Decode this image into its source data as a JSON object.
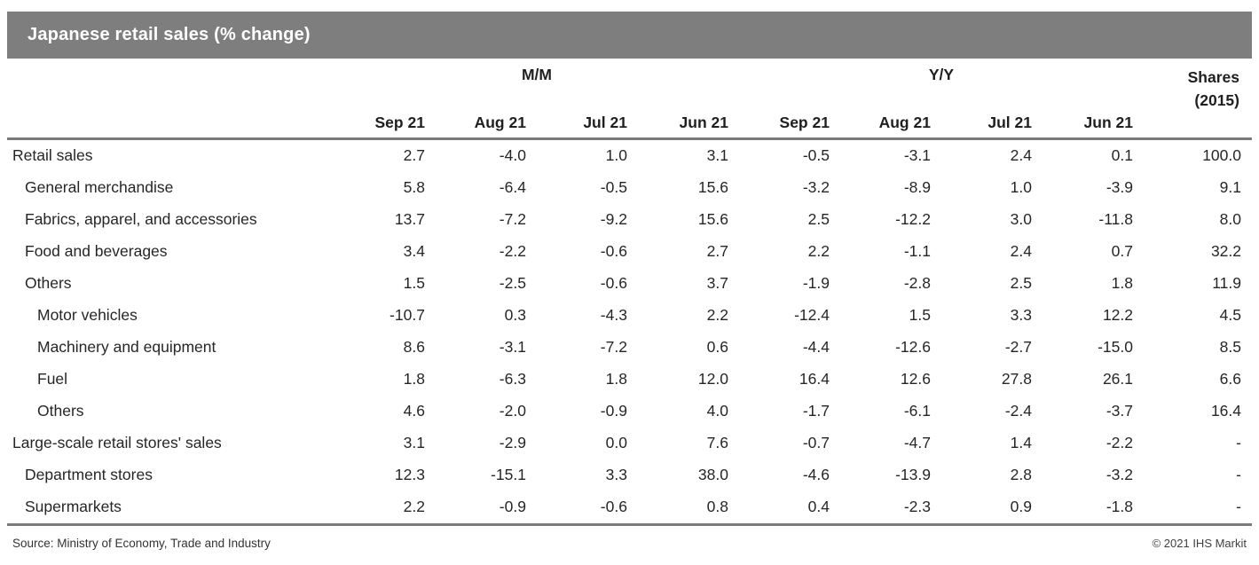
{
  "colors": {
    "title_bar_bg": "#7e7e7e",
    "title_text": "#ffffff",
    "rule": "#7a7a7a",
    "header_text": "#1f1f1f",
    "body_text": "#262626"
  },
  "title_bar": {
    "title": "Japanese retail sales (% change)"
  },
  "chart_data": {
    "type": "table",
    "title": "Japanese retail sales (% change)",
    "column_groups": [
      {
        "label": "M/M",
        "span": 4
      },
      {
        "label": "Y/Y",
        "span": 4
      }
    ],
    "month_columns": [
      "Sep 21",
      "Aug 21",
      "Jul 21",
      "Jun 21",
      "Sep 21",
      "Aug 21",
      "Jul 21",
      "Jun 21"
    ],
    "shares_column": {
      "line1": "Shares",
      "line2": "(2015)"
    },
    "rows": [
      {
        "label": "Retail sales",
        "indent": 0,
        "values": [
          "2.7",
          "-4.0",
          "1.0",
          "3.1",
          "-0.5",
          "-3.1",
          "2.4",
          "0.1",
          "100.0"
        ]
      },
      {
        "label": "General merchandise",
        "indent": 1,
        "values": [
          "5.8",
          "-6.4",
          "-0.5",
          "15.6",
          "-3.2",
          "-8.9",
          "1.0",
          "-3.9",
          "9.1"
        ]
      },
      {
        "label": "Fabrics, apparel, and accessories",
        "indent": 1,
        "values": [
          "13.7",
          "-7.2",
          "-9.2",
          "15.6",
          "2.5",
          "-12.2",
          "3.0",
          "-11.8",
          "8.0"
        ]
      },
      {
        "label": "Food and beverages",
        "indent": 1,
        "values": [
          "3.4",
          "-2.2",
          "-0.6",
          "2.7",
          "2.2",
          "-1.1",
          "2.4",
          "0.7",
          "32.2"
        ]
      },
      {
        "label": "Others",
        "indent": 1,
        "values": [
          "1.5",
          "-2.5",
          "-0.6",
          "3.7",
          "-1.9",
          "-2.8",
          "2.5",
          "1.8",
          "11.9"
        ]
      },
      {
        "label": "Motor vehicles",
        "indent": 2,
        "values": [
          "-10.7",
          "0.3",
          "-4.3",
          "2.2",
          "-12.4",
          "1.5",
          "3.3",
          "12.2",
          "4.5"
        ]
      },
      {
        "label": "Machinery and equipment",
        "indent": 2,
        "values": [
          "8.6",
          "-3.1",
          "-7.2",
          "0.6",
          "-4.4",
          "-12.6",
          "-2.7",
          "-15.0",
          "8.5"
        ]
      },
      {
        "label": "Fuel",
        "indent": 2,
        "values": [
          "1.8",
          "-6.3",
          "1.8",
          "12.0",
          "16.4",
          "12.6",
          "27.8",
          "26.1",
          "6.6"
        ]
      },
      {
        "label": "Others",
        "indent": 2,
        "values": [
          "4.6",
          "-2.0",
          "-0.9",
          "4.0",
          "-1.7",
          "-6.1",
          "-2.4",
          "-3.7",
          "16.4"
        ]
      },
      {
        "label": "Large-scale retail stores' sales",
        "indent": 0,
        "values": [
          "3.1",
          "-2.9",
          "0.0",
          "7.6",
          "-0.7",
          "-4.7",
          "1.4",
          "-2.2",
          "-"
        ]
      },
      {
        "label": "Department stores",
        "indent": 1,
        "values": [
          "12.3",
          "-15.1",
          "3.3",
          "38.0",
          "-4.6",
          "-13.9",
          "2.8",
          "-3.2",
          "-"
        ]
      },
      {
        "label": "Supermarkets",
        "indent": 1,
        "values": [
          "2.2",
          "-0.9",
          "-0.6",
          "0.8",
          "0.4",
          "-2.3",
          "0.9",
          "-1.8",
          "-"
        ]
      }
    ]
  },
  "footer": {
    "source": "Source: Ministry of Economy, Trade and Industry",
    "copyright": "© 2021 IHS Markit"
  }
}
